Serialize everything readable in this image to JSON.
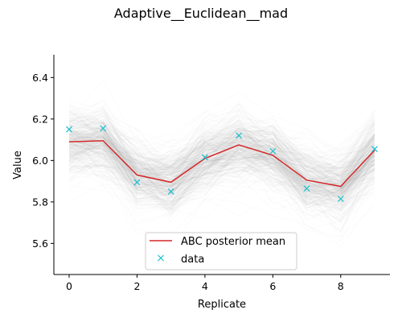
{
  "chart_data": {
    "type": "line",
    "title": "Adaptive__Euclidean__mad",
    "xlabel": "Replicate",
    "ylabel": "Value",
    "xlim": [
      -0.45,
      9.45
    ],
    "ylim": [
      5.45,
      6.51
    ],
    "xticks": [
      0,
      2,
      4,
      6,
      8
    ],
    "yticks": [
      5.6,
      5.8,
      6.0,
      6.2,
      6.4
    ],
    "xtick_labels": [
      "0",
      "2",
      "4",
      "6",
      "8"
    ],
    "ytick_labels": [
      "5.6",
      "5.8",
      "6.0",
      "6.2",
      "6.4"
    ],
    "x": [
      0,
      1,
      2,
      3,
      4,
      5,
      6,
      7,
      8,
      9
    ],
    "series": [
      {
        "name": "ABC posterior mean",
        "kind": "line",
        "color": "#d62728",
        "values": [
          6.09,
          6.095,
          5.93,
          5.895,
          6.01,
          6.075,
          6.025,
          5.905,
          5.875,
          6.05
        ]
      },
      {
        "name": "data",
        "kind": "marker-x",
        "color": "#17becf",
        "values": [
          6.15,
          6.155,
          5.895,
          5.85,
          6.015,
          6.12,
          6.045,
          5.865,
          5.815,
          6.055
        ]
      }
    ],
    "posterior_samples": {
      "color": "#808080",
      "spread_sd": 0.1
    },
    "legend_position": "lower-center",
    "grid": false
  }
}
